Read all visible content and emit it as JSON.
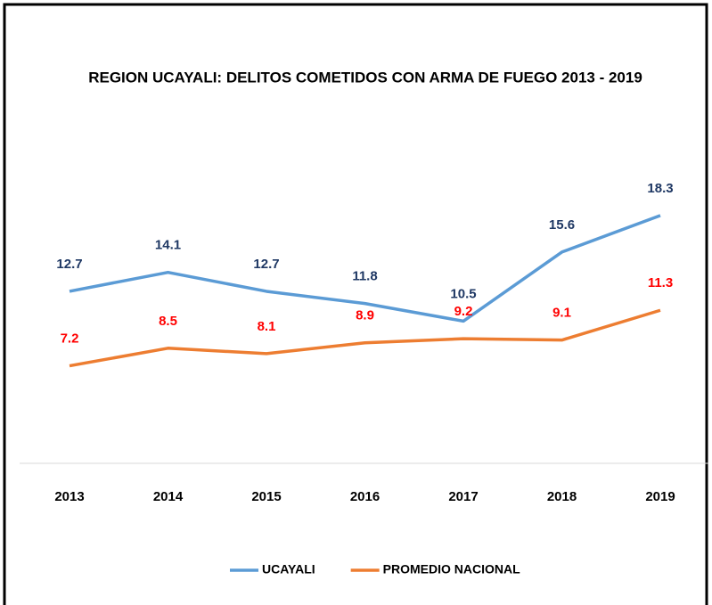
{
  "chart_data": {
    "type": "line",
    "title": "REGION UCAYALI: DELITOS COMETIDOS CON ARMA DE FUEGO 2013 - 2019",
    "categories": [
      "2013",
      "2014",
      "2015",
      "2016",
      "2017",
      "2018",
      "2019"
    ],
    "series": [
      {
        "name": "UCAYALI",
        "color": "#5b9bd5",
        "label_color": "#1f3864",
        "values": [
          12.7,
          14.1,
          12.7,
          11.8,
          10.5,
          15.6,
          18.3
        ]
      },
      {
        "name": "PROMEDIO NACIONAL",
        "color": "#ed7d31",
        "label_color": "#ff0000",
        "values": [
          7.2,
          8.5,
          8.1,
          8.9,
          9.2,
          9.1,
          11.3
        ]
      }
    ],
    "ylim": [
      0,
      20
    ],
    "grid": false,
    "legend": "bottom"
  }
}
